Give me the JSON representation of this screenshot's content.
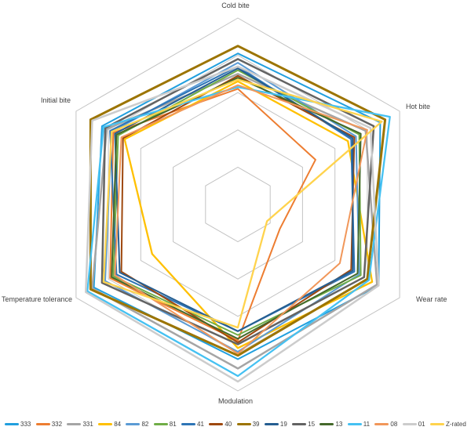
{
  "chart_data": {
    "type": "radar",
    "title": "",
    "categories": [
      "Cold bite",
      "Hot bite",
      "Wear rate",
      "Modulation",
      "Temperature tolerance",
      "Initial bite"
    ],
    "axis_max": 10,
    "rings": [
      2,
      4,
      6,
      8,
      10
    ],
    "grid_on": true,
    "grid_color": "#c3c3c3",
    "legend_position": "bottom",
    "series": [
      {
        "name": "333",
        "color": "#219fde",
        "stroke_width": 2,
        "values": [
          8.1,
          8.8,
          8.7,
          8.3,
          8.9,
          8.4
        ]
      },
      {
        "name": "332",
        "color": "#ed7d31",
        "stroke_width": 2,
        "values": [
          6.2,
          4.8,
          2.6,
          7.3,
          7.9,
          7.7
        ]
      },
      {
        "name": "331",
        "color": "#a5a5a5",
        "stroke_width": 2.5,
        "values": [
          7.0,
          7.9,
          8.6,
          8.8,
          9.0,
          8.1
        ]
      },
      {
        "name": "84",
        "color": "#ffc000",
        "stroke_width": 2.3,
        "values": [
          6.6,
          6.8,
          8.3,
          7.7,
          5.3,
          7.0
        ]
      },
      {
        "name": "82",
        "color": "#5b9bd5",
        "stroke_width": 2,
        "values": [
          7.6,
          7.3,
          7.5,
          7.9,
          8.2,
          7.8
        ]
      },
      {
        "name": "81",
        "color": "#70ad47",
        "stroke_width": 2,
        "values": [
          7.2,
          7.5,
          7.6,
          7.0,
          7.7,
          7.4
        ]
      },
      {
        "name": "41",
        "color": "#2e75b6",
        "stroke_width": 2,
        "values": [
          7.4,
          7.0,
          7.2,
          6.8,
          7.5,
          7.9
        ]
      },
      {
        "name": "40",
        "color": "#9e480e",
        "stroke_width": 2,
        "values": [
          6.9,
          7.2,
          7.0,
          7.4,
          7.2,
          7.1
        ]
      },
      {
        "name": "39",
        "color": "#9c7400",
        "stroke_width": 3,
        "values": [
          8.5,
          9.1,
          8.0,
          8.1,
          9.1,
          9.1
        ]
      },
      {
        "name": "19",
        "color": "#255e91",
        "stroke_width": 2,
        "values": [
          7.3,
          7.1,
          7.1,
          6.8,
          7.3,
          7.6
        ]
      },
      {
        "name": "15",
        "color": "#636363",
        "stroke_width": 2.5,
        "values": [
          7.8,
          8.4,
          7.8,
          7.5,
          8.4,
          8.2
        ]
      },
      {
        "name": "13",
        "color": "#44682a",
        "stroke_width": 2,
        "values": [
          6.8,
          7.6,
          7.4,
          7.2,
          7.8,
          7.5
        ]
      },
      {
        "name": "11",
        "color": "#45c1f2",
        "stroke_width": 2.3,
        "values": [
          6.3,
          9.4,
          8.1,
          9.2,
          9.3,
          8.3
        ]
      },
      {
        "name": "08",
        "color": "#f1975a",
        "stroke_width": 2,
        "values": [
          6.4,
          8.0,
          6.3,
          8.0,
          7.6,
          7.2
        ]
      },
      {
        "name": "01",
        "color": "#cccccc",
        "stroke_width": 2.5,
        "values": [
          7.4,
          8.2,
          8.7,
          9.5,
          9.4,
          9.0
        ]
      },
      {
        "name": "Z-rated",
        "color": "#ffd34d",
        "stroke_width": 2.3,
        "values": [
          6.7,
          8.9,
          1.8,
          6.6,
          8.3,
          7.8
        ]
      }
    ]
  }
}
